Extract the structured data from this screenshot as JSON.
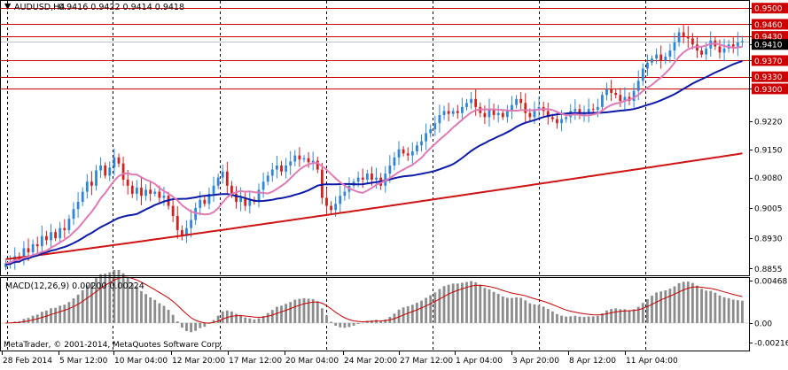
{
  "window": {
    "symbol_label": "AUDUSD,H4",
    "ohlc_label": "0.9416 0.9422 0.9414 0.9418",
    "copyright": "MetaTrader, © 2001-2014, MetaQuotes Software Corp."
  },
  "colors": {
    "bull": "#2f86d8",
    "bear": "#d21f1f",
    "ma_fast": "#e07ab7",
    "ma_mid": "#0c1aa8",
    "ma_slow": "#cf1414",
    "hline": "#cc0000",
    "grid": "#000000",
    "macd_hist": "#8c8c8c",
    "macd_signal": "#cc0000",
    "price_tag_bg": "#cc0000",
    "current_tag_bg": "#000000"
  },
  "chart_data": [
    {
      "type": "candlestick",
      "title": "AUDUSD,H4",
      "ylim": [
        0.8838,
        0.9518
      ],
      "y_ticks": [
        "0.9500",
        "0.9460",
        "0.9430",
        "0.9410",
        "0.9370",
        "0.9330",
        "0.9300",
        "0.9220",
        "0.9150",
        "0.9080",
        "0.9005",
        "0.8930",
        "0.8855"
      ],
      "horizontal_lines": [
        0.95,
        0.946,
        0.943,
        0.937,
        0.933,
        0.93
      ],
      "current_price": 0.9418,
      "x_labels": [
        "28 Feb 2014",
        "5 Mar 12:00",
        "10 Mar 04:00",
        "12 Mar 20:00",
        "17 Mar 12:00",
        "20 Mar 04:00",
        "24 Mar 20:00",
        "27 Mar 12:00",
        "1 Apr 04:00",
        "3 Apr 20:00",
        "8 Apr 12:00",
        "11 Apr 04:00"
      ],
      "closes": [
        0.8868,
        0.8872,
        0.8885,
        0.8878,
        0.8905,
        0.8895,
        0.8915,
        0.891,
        0.8935,
        0.8925,
        0.8945,
        0.893,
        0.8955,
        0.895,
        0.8978,
        0.9002,
        0.902,
        0.9045,
        0.907,
        0.906,
        0.9098,
        0.911,
        0.9085,
        0.9105,
        0.913,
        0.9115,
        0.9075,
        0.906,
        0.904,
        0.9055,
        0.9035,
        0.905,
        0.904,
        0.9045,
        0.903,
        0.9035,
        0.901,
        0.8985,
        0.895,
        0.8935,
        0.8955,
        0.8975,
        0.9005,
        0.9025,
        0.9015,
        0.904,
        0.906,
        0.908,
        0.9095,
        0.906,
        0.904,
        0.902,
        0.903,
        0.901,
        0.9025,
        0.902,
        0.905,
        0.907,
        0.9085,
        0.91,
        0.911,
        0.9095,
        0.911,
        0.912,
        0.9135,
        0.9125,
        0.9128,
        0.9118,
        0.9122,
        0.91,
        0.903,
        0.901,
        0.9,
        0.9015,
        0.9035,
        0.9045,
        0.906,
        0.907,
        0.908,
        0.9075,
        0.909,
        0.9075,
        0.908,
        0.906,
        0.909,
        0.911,
        0.913,
        0.915,
        0.914,
        0.9135,
        0.9145,
        0.916,
        0.917,
        0.919,
        0.92,
        0.9215,
        0.9235,
        0.9245,
        0.9238,
        0.9245,
        0.924,
        0.9255,
        0.9265,
        0.9275,
        0.9255,
        0.924,
        0.923,
        0.925,
        0.9235,
        0.924,
        0.923,
        0.9245,
        0.926,
        0.9275,
        0.9265,
        0.924,
        0.923,
        0.925,
        0.9255,
        0.9245,
        0.923,
        0.9225,
        0.9215,
        0.9225,
        0.923,
        0.9245,
        0.925,
        0.9235,
        0.924,
        0.925,
        0.9248,
        0.9255,
        0.9285,
        0.93,
        0.929,
        0.9285,
        0.927,
        0.928,
        0.927,
        0.9295,
        0.932,
        0.935,
        0.9365,
        0.9375,
        0.9385,
        0.937,
        0.938,
        0.9395,
        0.9415,
        0.944,
        0.943,
        0.9425,
        0.941,
        0.9395,
        0.9385,
        0.94,
        0.942,
        0.9405,
        0.939,
        0.94,
        0.941,
        0.9405,
        0.9415,
        0.9418
      ],
      "macd": {
        "label": "MACD(12,26,9) 0.00200 0.00224",
        "ylim": [
          -0.00216,
          0.00468
        ],
        "y_ticks": [
          "0.00468",
          "0.00",
          "-0.00216"
        ]
      }
    }
  ]
}
